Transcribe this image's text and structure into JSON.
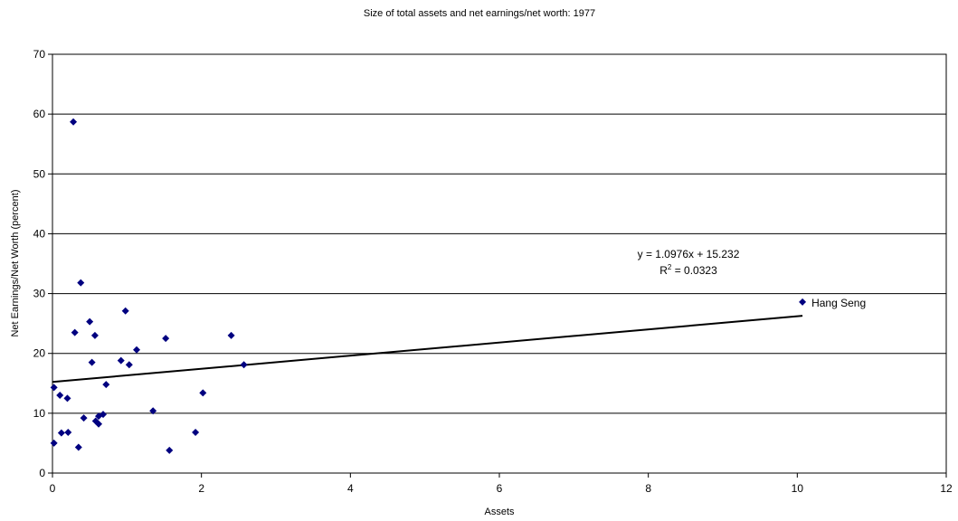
{
  "chart_data": {
    "type": "scatter",
    "title": "Size of total assets and net earnings/net worth: 1977",
    "xlabel": "Assets",
    "ylabel": "Net Earnings/Net Worth (percent)",
    "xlim": [
      0,
      12
    ],
    "ylim": [
      0,
      70
    ],
    "xticks": [
      "0",
      "2",
      "4",
      "6",
      "8",
      "10",
      "12"
    ],
    "yticks": [
      "0",
      "10",
      "20",
      "30",
      "40",
      "50",
      "60",
      "70"
    ],
    "grid": "horizontal",
    "marker_color": "#000080",
    "series": [
      {
        "points": [
          [
            0.28,
            58.7
          ],
          [
            0.38,
            31.8
          ],
          [
            0.98,
            27.1
          ],
          [
            0.5,
            25.3
          ],
          [
            0.3,
            23.5
          ],
          [
            0.57,
            23.0
          ],
          [
            2.4,
            23.0
          ],
          [
            1.52,
            22.5
          ],
          [
            1.13,
            20.6
          ],
          [
            0.92,
            18.8
          ],
          [
            0.53,
            18.5
          ],
          [
            1.03,
            18.1
          ],
          [
            2.57,
            18.1
          ],
          [
            0.72,
            14.8
          ],
          [
            0.02,
            14.3
          ],
          [
            0.1,
            13.0
          ],
          [
            2.02,
            13.4
          ],
          [
            0.2,
            12.5
          ],
          [
            1.35,
            10.4
          ],
          [
            0.68,
            9.8
          ],
          [
            0.62,
            9.5
          ],
          [
            0.42,
            9.2
          ],
          [
            0.58,
            8.7
          ],
          [
            0.62,
            8.2
          ],
          [
            0.12,
            6.7
          ],
          [
            0.21,
            6.8
          ],
          [
            1.92,
            6.8
          ],
          [
            0.02,
            5.0
          ],
          [
            0.35,
            4.3
          ],
          [
            1.57,
            3.8
          ],
          [
            10.07,
            28.6
          ]
        ]
      }
    ],
    "trendline": {
      "slope": 1.0976,
      "intercept": 15.232,
      "x_range": [
        0,
        10.07
      ],
      "equation": "y = 1.0976x + 15.232",
      "r2_prefix": "R",
      "r2_sup": "2",
      "r2_value": " = 0.0323"
    },
    "annotations": [
      {
        "text": "Hang Seng",
        "x": 10.07,
        "y": 28.6
      }
    ]
  }
}
